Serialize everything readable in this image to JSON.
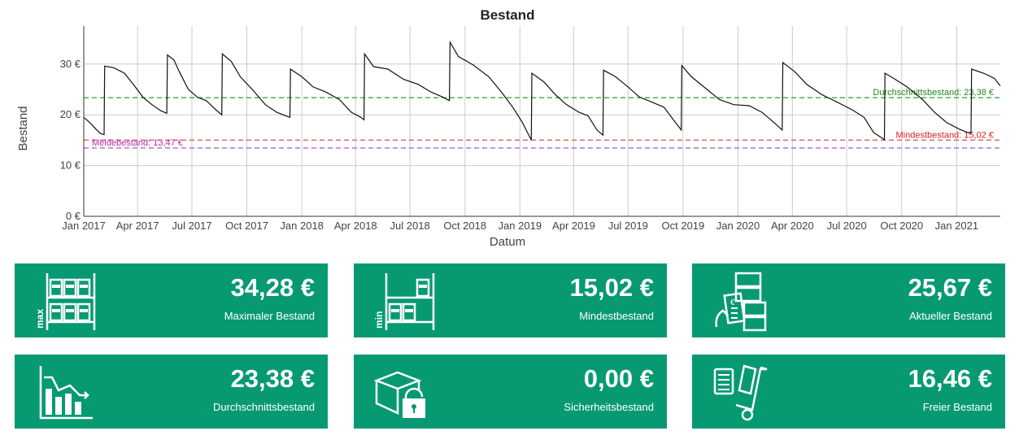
{
  "chart_data": {
    "type": "line",
    "title": "Bestand",
    "xlabel": "Datum",
    "ylabel": "Bestand",
    "ylim": [
      0,
      37.5
    ],
    "y_ticks": [
      "0 €",
      "10 €",
      "20 €",
      "30 €"
    ],
    "x_range": [
      "2017-01-01",
      "2021-03-15"
    ],
    "x_ticks": [
      {
        "date": "2017-01-01",
        "label": "Jan 2017"
      },
      {
        "date": "2017-04-01",
        "label": "Apr 2017"
      },
      {
        "date": "2017-07-01",
        "label": "Jul 2017"
      },
      {
        "date": "2017-10-01",
        "label": "Oct 2017"
      },
      {
        "date": "2018-01-01",
        "label": "Jan 2018"
      },
      {
        "date": "2018-04-01",
        "label": "Apr 2018"
      },
      {
        "date": "2018-07-01",
        "label": "Jul 2018"
      },
      {
        "date": "2018-10-01",
        "label": "Oct 2018"
      },
      {
        "date": "2019-01-01",
        "label": "Jan 2019"
      },
      {
        "date": "2019-04-01",
        "label": "Apr 2019"
      },
      {
        "date": "2019-07-01",
        "label": "Jul 2019"
      },
      {
        "date": "2019-10-01",
        "label": "Oct 2019"
      },
      {
        "date": "2020-01-01",
        "label": "Jan 2020"
      },
      {
        "date": "2020-04-01",
        "label": "Apr 2020"
      },
      {
        "date": "2020-07-01",
        "label": "Jul 2020"
      },
      {
        "date": "2020-10-01",
        "label": "Oct 2020"
      },
      {
        "date": "2021-01-01",
        "label": "Jan 2021"
      }
    ],
    "grid": true,
    "series": [
      {
        "line_color": "#111111",
        "points": [
          [
            "2017-01-01",
            19.5
          ],
          [
            "2017-01-08",
            18.8
          ],
          [
            "2017-01-15",
            18.0
          ],
          [
            "2017-01-22",
            17.1
          ],
          [
            "2017-01-29",
            16.3
          ],
          [
            "2017-02-04",
            16.1
          ],
          [
            "2017-02-05",
            29.6
          ],
          [
            "2017-02-20",
            29.3
          ],
          [
            "2017-03-10",
            28.2
          ],
          [
            "2017-03-25",
            26.0
          ],
          [
            "2017-04-10",
            23.5
          ],
          [
            "2017-04-25",
            22.0
          ],
          [
            "2017-05-10",
            20.8
          ],
          [
            "2017-05-20",
            20.3
          ],
          [
            "2017-05-21",
            31.8
          ],
          [
            "2017-06-01",
            30.8
          ],
          [
            "2017-06-10",
            28.5
          ],
          [
            "2017-06-25",
            25.0
          ],
          [
            "2017-07-10",
            23.5
          ],
          [
            "2017-07-25",
            22.8
          ],
          [
            "2017-08-10",
            21.0
          ],
          [
            "2017-08-20",
            20.0
          ],
          [
            "2017-08-21",
            32.0
          ],
          [
            "2017-09-05",
            30.5
          ],
          [
            "2017-09-20",
            27.5
          ],
          [
            "2017-10-10",
            25.0
          ],
          [
            "2017-11-01",
            22.0
          ],
          [
            "2017-11-20",
            20.5
          ],
          [
            "2017-12-05",
            19.8
          ],
          [
            "2017-12-12",
            19.5
          ],
          [
            "2017-12-13",
            29.0
          ],
          [
            "2018-01-01",
            27.5
          ],
          [
            "2018-01-20",
            25.5
          ],
          [
            "2018-02-10",
            24.5
          ],
          [
            "2018-03-05",
            23.0
          ],
          [
            "2018-03-25",
            20.5
          ],
          [
            "2018-04-10",
            19.5
          ],
          [
            "2018-04-15",
            19.0
          ],
          [
            "2018-04-16",
            32.0
          ],
          [
            "2018-05-01",
            29.5
          ],
          [
            "2018-05-25",
            29.0
          ],
          [
            "2018-06-20",
            27.0
          ],
          [
            "2018-07-15",
            26.0
          ],
          [
            "2018-08-05",
            24.5
          ],
          [
            "2018-08-25",
            23.5
          ],
          [
            "2018-09-05",
            22.8
          ],
          [
            "2018-09-06",
            34.3
          ],
          [
            "2018-09-20",
            31.5
          ],
          [
            "2018-10-15",
            29.8
          ],
          [
            "2018-11-10",
            27.5
          ],
          [
            "2018-12-01",
            24.5
          ],
          [
            "2018-12-20",
            21.5
          ],
          [
            "2019-01-05",
            18.5
          ],
          [
            "2019-01-15",
            16.2
          ],
          [
            "2019-01-20",
            15.0
          ],
          [
            "2019-01-21",
            28.2
          ],
          [
            "2019-02-10",
            26.5
          ],
          [
            "2019-03-01",
            24.0
          ],
          [
            "2019-03-20",
            22.0
          ],
          [
            "2019-04-10",
            20.5
          ],
          [
            "2019-04-25",
            19.8
          ],
          [
            "2019-05-10",
            17.0
          ],
          [
            "2019-05-20",
            16.0
          ],
          [
            "2019-05-21",
            28.8
          ],
          [
            "2019-06-10",
            27.5
          ],
          [
            "2019-07-01",
            25.5
          ],
          [
            "2019-07-20",
            23.5
          ],
          [
            "2019-08-10",
            22.5
          ],
          [
            "2019-08-30",
            21.5
          ],
          [
            "2019-09-15",
            19.0
          ],
          [
            "2019-09-28",
            17.0
          ],
          [
            "2019-09-29",
            29.7
          ],
          [
            "2019-10-15",
            27.5
          ],
          [
            "2019-11-05",
            25.5
          ],
          [
            "2019-12-01",
            23.0
          ],
          [
            "2019-12-25",
            22.0
          ],
          [
            "2020-01-20",
            21.8
          ],
          [
            "2020-02-10",
            20.5
          ],
          [
            "2020-03-01",
            18.5
          ],
          [
            "2020-03-15",
            17.0
          ],
          [
            "2020-03-16",
            30.3
          ],
          [
            "2020-04-05",
            28.5
          ],
          [
            "2020-04-25",
            26.0
          ],
          [
            "2020-05-20",
            24.0
          ],
          [
            "2020-06-15",
            22.5
          ],
          [
            "2020-07-10",
            21.0
          ],
          [
            "2020-07-30",
            19.5
          ],
          [
            "2020-08-15",
            16.5
          ],
          [
            "2020-09-02",
            15.1
          ],
          [
            "2020-09-03",
            28.2
          ],
          [
            "2020-09-20",
            27.0
          ],
          [
            "2020-10-10",
            25.5
          ],
          [
            "2020-11-05",
            23.0
          ],
          [
            "2020-11-25",
            20.5
          ],
          [
            "2020-12-15",
            18.5
          ],
          [
            "2021-01-05",
            17.2
          ],
          [
            "2021-01-20",
            16.5
          ],
          [
            "2021-01-25",
            16.4
          ],
          [
            "2021-01-26",
            29.0
          ],
          [
            "2021-02-15",
            28.2
          ],
          [
            "2021-03-05",
            27.2
          ],
          [
            "2021-03-15",
            25.7
          ]
        ]
      }
    ],
    "reference_lines": [
      {
        "label": "Durchschnittsbestand: 23,38 €",
        "value": 23.38,
        "color": "#2e9e2e",
        "text_color": "#1f8a1f",
        "anchor": "end"
      },
      {
        "label": "Mindestbestand: 15,02 €",
        "value": 15.02,
        "color": "#e84a4a",
        "text_color": "#e02020",
        "anchor": "end"
      },
      {
        "label": "Meldebestand: 13,47 €",
        "value": 13.47,
        "color": "#9b47b8",
        "text_color": "#b030b0",
        "anchor": "start"
      }
    ]
  },
  "cards": [
    {
      "value": "34,28 €",
      "label": "Maximaler Bestand",
      "icon": "shelf-max-icon",
      "icon_text": "max"
    },
    {
      "value": "15,02 €",
      "label": "Mindestbestand",
      "icon": "shelf-min-icon",
      "icon_text": "min"
    },
    {
      "value": "25,67 €",
      "label": "Aktueller Bestand",
      "icon": "boxes-invoice-icon",
      "icon_text": "€"
    },
    {
      "value": "23,38 €",
      "label": "Durchschnittsbestand",
      "icon": "bar-chart-icon"
    },
    {
      "value": "0,00 €",
      "label": "Sicherheitsbestand",
      "icon": "box-lock-icon"
    },
    {
      "value": "16,46 €",
      "label": "Freier Bestand",
      "icon": "hand-truck-icon"
    }
  ],
  "colors": {
    "card_bg": "#079a72",
    "card_text": "#ffffff",
    "grid": "#cccccc"
  }
}
